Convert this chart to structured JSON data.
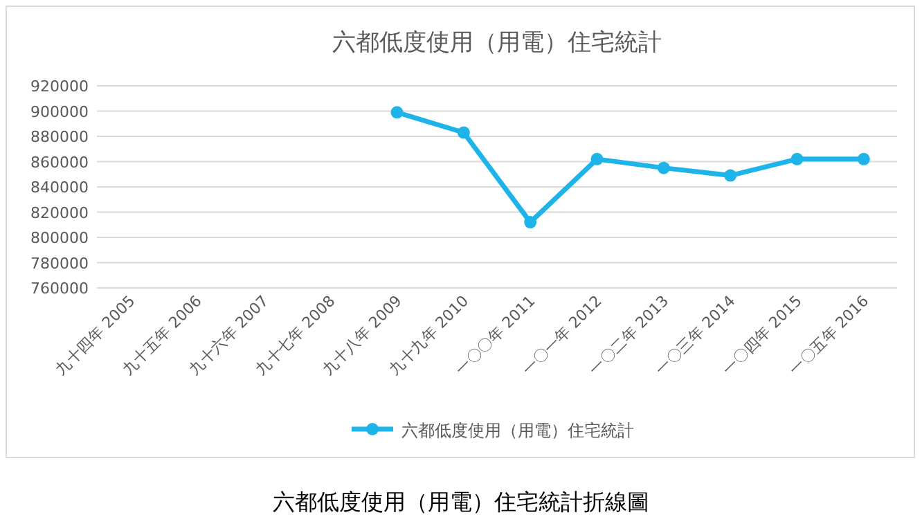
{
  "chart_data": {
    "type": "line",
    "title": "六都低度使用（用電）住宅統計",
    "categories": [
      "九十四年 2005",
      "九十五年 2006",
      "九十六年 2007",
      "九十七年 2008",
      "九十八年 2009",
      "九十九年 2010",
      "一〇〇年 2011",
      "一〇一年 2012",
      "一〇二年 2013",
      "一〇三年 2014",
      "一〇四年 2015",
      "一〇五年 2016"
    ],
    "series": [
      {
        "name": "六都低度使用（用電）住宅統計",
        "color": "#1eb4ea",
        "values": [
          null,
          null,
          null,
          null,
          899000,
          883000,
          812000,
          862000,
          855000,
          849000,
          862000,
          862000
        ]
      }
    ],
    "ylim": [
      760000,
      920000
    ],
    "yticks": [
      760000,
      780000,
      800000,
      820000,
      840000,
      860000,
      880000,
      900000,
      920000
    ],
    "grid": "y",
    "legend": "bottom",
    "marker": "circle",
    "line_style": "solid",
    "annotations": [
      "六都低度使用（用電）住宅統計折線圖"
    ]
  }
}
